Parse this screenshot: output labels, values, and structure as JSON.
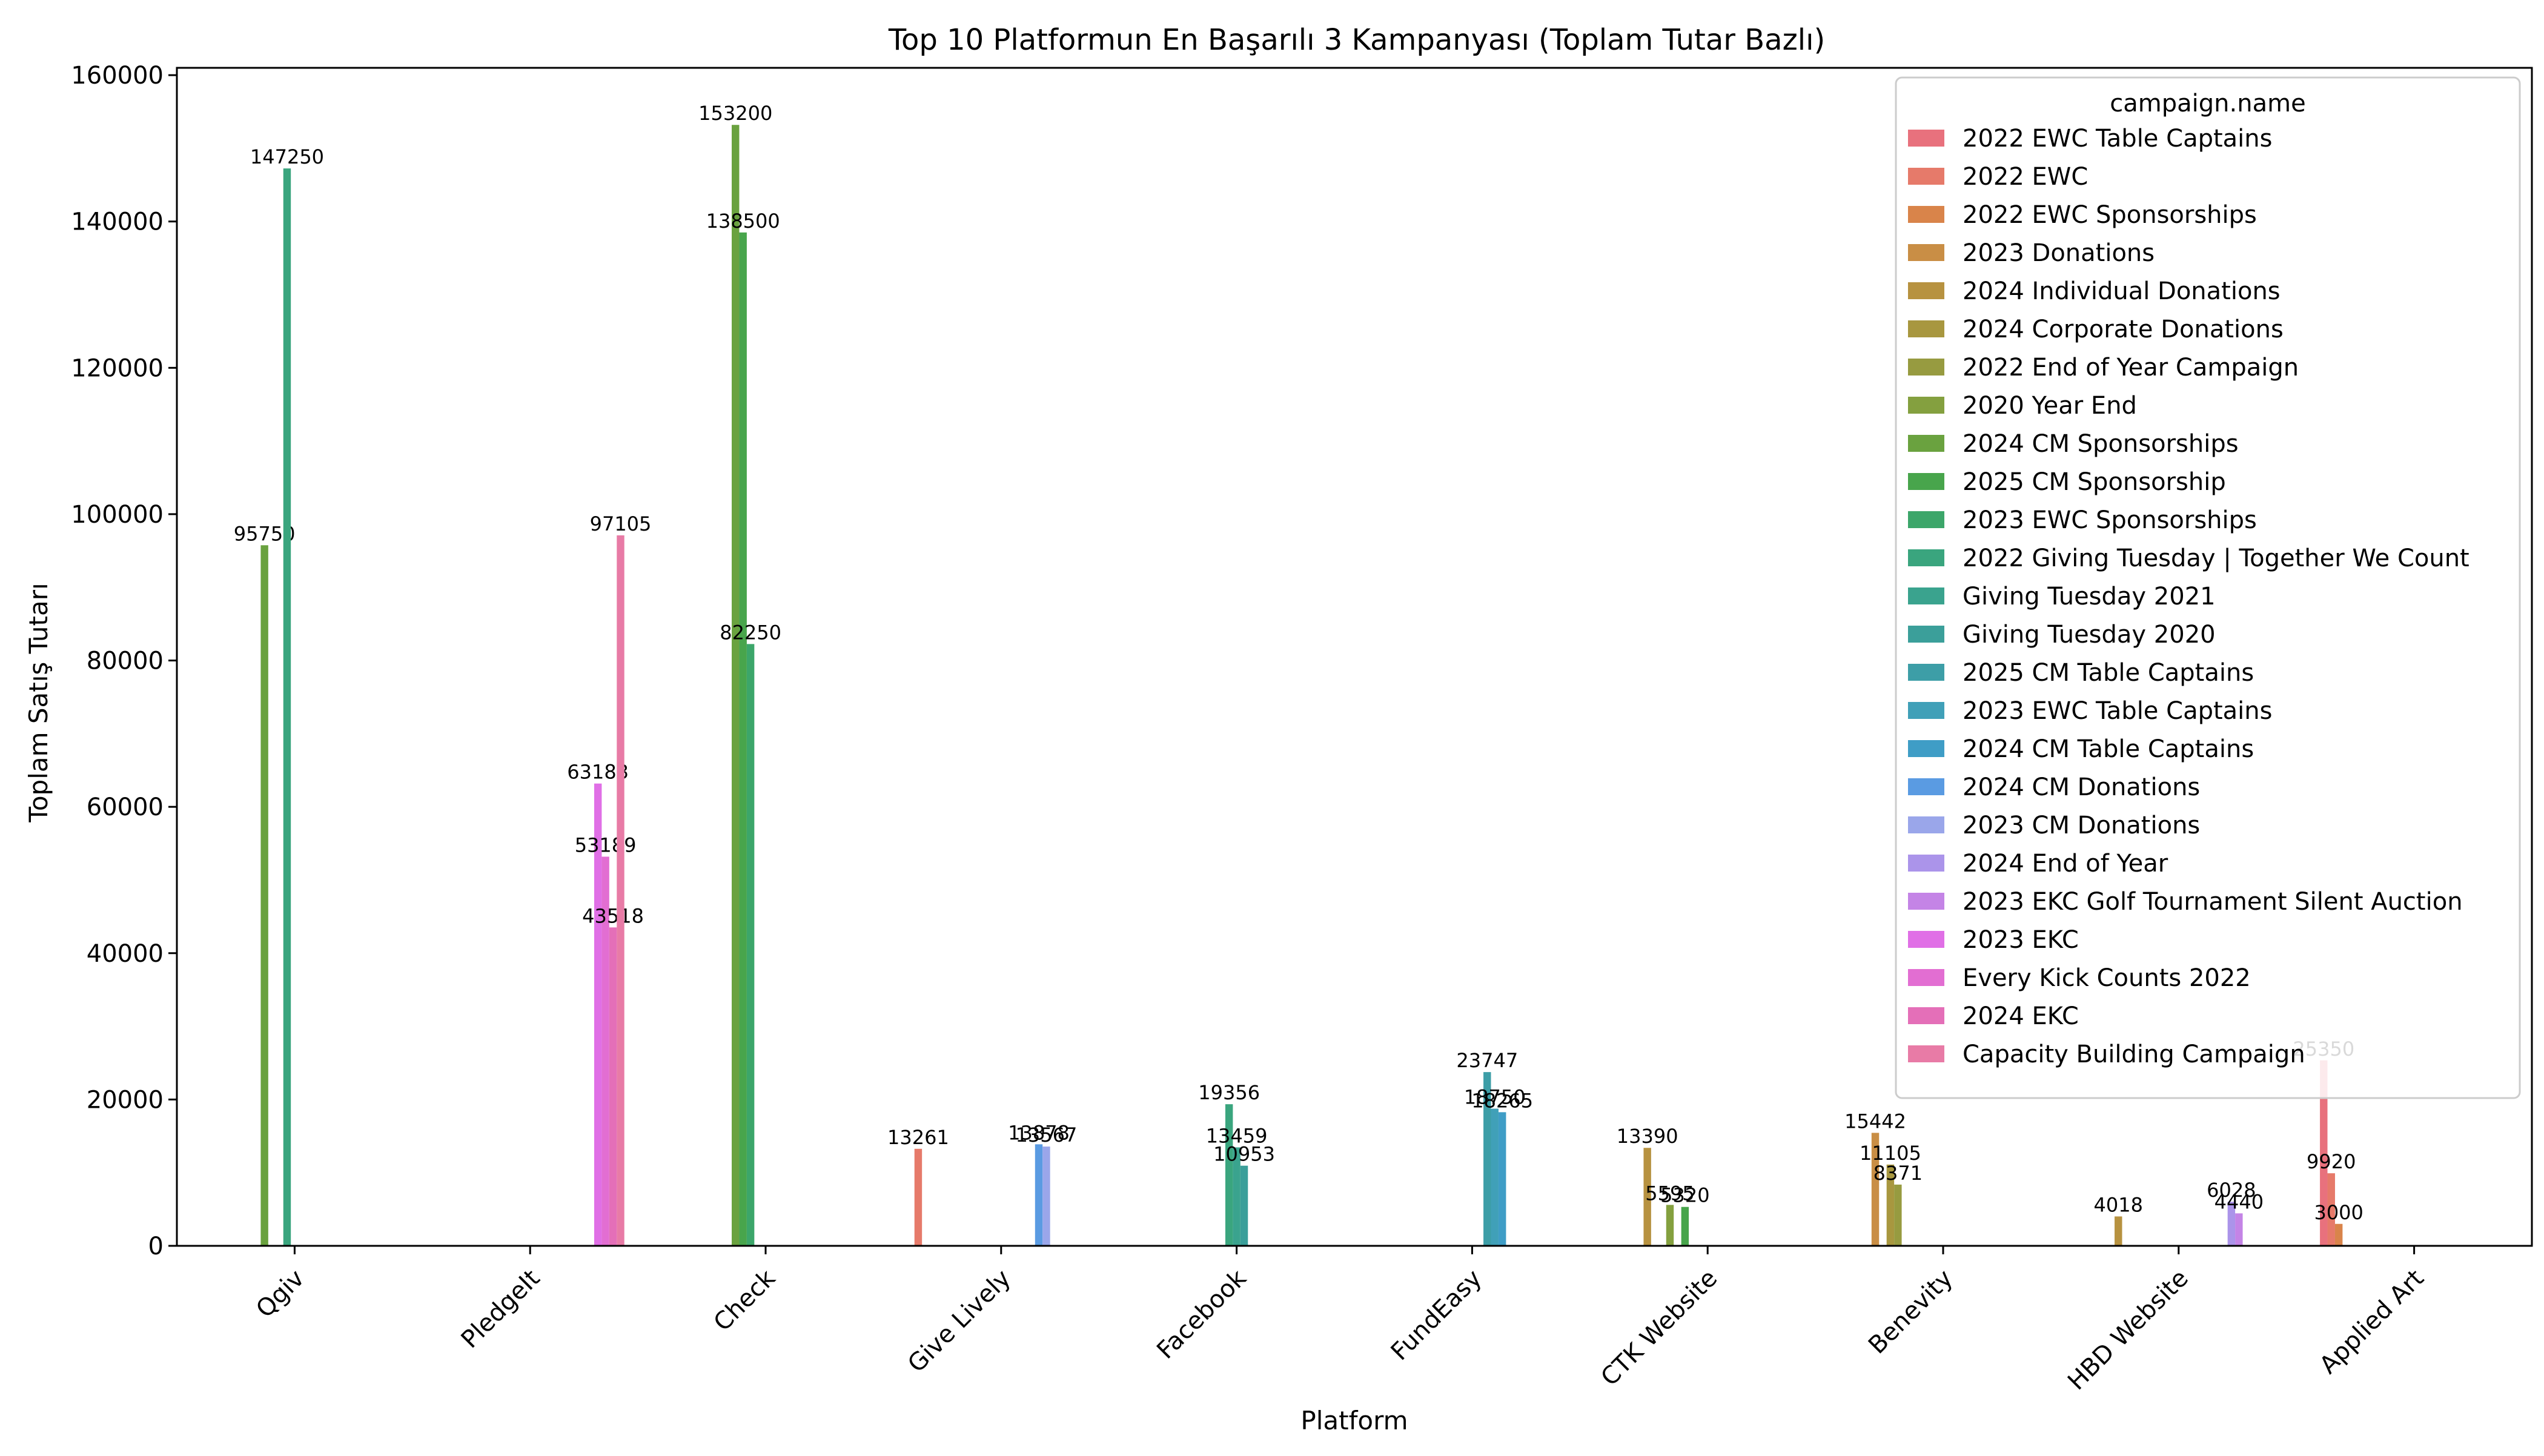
{
  "chart_data": {
    "type": "bar",
    "title": "Top 10 Platformun En Başarılı 3 Kampanyası (Toplam Tutar Bazlı)",
    "xlabel": "Platform",
    "ylabel": "Toplam Satış Tutarı",
    "ylim": [
      0,
      161000
    ],
    "yticks": [
      0,
      20000,
      40000,
      60000,
      80000,
      100000,
      120000,
      140000,
      160000
    ],
    "grid": false,
    "legend_position": "top-right",
    "legend_title": "campaign.name",
    "categories": [
      "Qgiv",
      "PledgeIt",
      "Check",
      "Give Lively",
      "Facebook",
      "FundEasy",
      "CTK Website",
      "Benevity",
      "HBD Website",
      "Applied Art"
    ],
    "series": [
      {
        "name": "2022 EWC Table Captains",
        "color": "#e8717d",
        "values": [
          null,
          null,
          null,
          null,
          null,
          null,
          null,
          null,
          null,
          25350
        ]
      },
      {
        "name": "2022 EWC",
        "color": "#e67a6a",
        "values": [
          null,
          null,
          null,
          13261,
          null,
          null,
          null,
          null,
          null,
          9920
        ]
      },
      {
        "name": "2022 EWC Sponsorships",
        "color": "#d9844a",
        "values": [
          null,
          null,
          null,
          null,
          null,
          null,
          null,
          null,
          null,
          3000
        ]
      },
      {
        "name": "2023 Donations",
        "color": "#c98e45",
        "values": [
          null,
          null,
          null,
          null,
          null,
          null,
          null,
          15442,
          null,
          null
        ]
      },
      {
        "name": "2024 Individual Donations",
        "color": "#b79240",
        "values": [
          null,
          null,
          null,
          null,
          null,
          null,
          13390,
          null,
          4018,
          null
        ]
      },
      {
        "name": "2024 Corporate Donations",
        "color": "#a8973f",
        "values": [
          null,
          null,
          null,
          null,
          null,
          null,
          null,
          11105,
          null,
          null
        ]
      },
      {
        "name": "2022 End of Year Campaign",
        "color": "#979b40",
        "values": [
          null,
          null,
          null,
          null,
          null,
          null,
          null,
          8371,
          null,
          null
        ]
      },
      {
        "name": "2020 Year End",
        "color": "#84a03f",
        "values": [
          null,
          null,
          null,
          null,
          null,
          null,
          5595,
          null,
          null,
          null
        ]
      },
      {
        "name": "2024 CM Sponsorships",
        "color": "#6aa23f",
        "values": [
          95750,
          null,
          153200,
          null,
          null,
          null,
          null,
          null,
          null,
          null
        ]
      },
      {
        "name": "2025 CM Sponsorship",
        "color": "#48a54c",
        "values": [
          null,
          null,
          138500,
          null,
          null,
          null,
          5320,
          null,
          null,
          null
        ]
      },
      {
        "name": "2023 EWC Sponsorships",
        "color": "#3ca66a",
        "values": [
          null,
          null,
          82250,
          null,
          null,
          null,
          null,
          null,
          null,
          null
        ]
      },
      {
        "name": "2022 Giving Tuesday | Together We Count",
        "color": "#3aa57e",
        "values": [
          147250,
          null,
          null,
          null,
          19356,
          null,
          null,
          null,
          null,
          null
        ]
      },
      {
        "name": "Giving Tuesday 2021",
        "color": "#3aa38e",
        "values": [
          null,
          null,
          null,
          null,
          13459,
          null,
          null,
          null,
          null,
          null
        ]
      },
      {
        "name": "Giving Tuesday 2020",
        "color": "#3b9f9a",
        "values": [
          null,
          null,
          null,
          null,
          10953,
          null,
          null,
          null,
          null,
          null
        ]
      },
      {
        "name": "2025 CM Table Captains",
        "color": "#3d9ea7",
        "values": [
          null,
          null,
          null,
          null,
          null,
          23747,
          null,
          null,
          null,
          null
        ]
      },
      {
        "name": "2023 EWC Table Captains",
        "color": "#40a0b8",
        "values": [
          null,
          null,
          null,
          null,
          null,
          18750,
          null,
          null,
          null,
          null
        ]
      },
      {
        "name": "2024 CM Table Captains",
        "color": "#3f9dc6",
        "values": [
          null,
          null,
          null,
          null,
          null,
          18265,
          null,
          null,
          null,
          null
        ]
      },
      {
        "name": "2024 CM Donations",
        "color": "#5a9be2",
        "values": [
          null,
          null,
          null,
          13878,
          null,
          null,
          null,
          null,
          null,
          null
        ]
      },
      {
        "name": "2023 CM Donations",
        "color": "#9aa6ea",
        "values": [
          null,
          null,
          null,
          13567,
          null,
          null,
          null,
          null,
          null,
          null
        ]
      },
      {
        "name": "2024 End of Year",
        "color": "#ab94ea",
        "values": [
          null,
          null,
          null,
          null,
          null,
          null,
          null,
          null,
          6028,
          null
        ]
      },
      {
        "name": "2023 EKC Golf Tournament Silent Auction",
        "color": "#c484e6",
        "values": [
          null,
          null,
          null,
          null,
          null,
          null,
          null,
          null,
          4440,
          null
        ]
      },
      {
        "name": "2023 EKC",
        "color": "#e06fe6",
        "values": [
          null,
          63183,
          null,
          null,
          null,
          null,
          null,
          null,
          null,
          null
        ]
      },
      {
        "name": "Every Kick Counts 2022",
        "color": "#e26ed2",
        "values": [
          null,
          53189,
          null,
          null,
          null,
          null,
          null,
          null,
          null,
          null
        ]
      },
      {
        "name": "2024 EKC",
        "color": "#e46fb8",
        "values": [
          null,
          43518,
          null,
          null,
          null,
          null,
          null,
          null,
          null,
          null
        ]
      },
      {
        "name": "Capacity Building Campaign",
        "color": "#e87ba6",
        "values": [
          null,
          97105,
          null,
          null,
          null,
          null,
          null,
          null,
          null,
          null
        ]
      }
    ]
  }
}
